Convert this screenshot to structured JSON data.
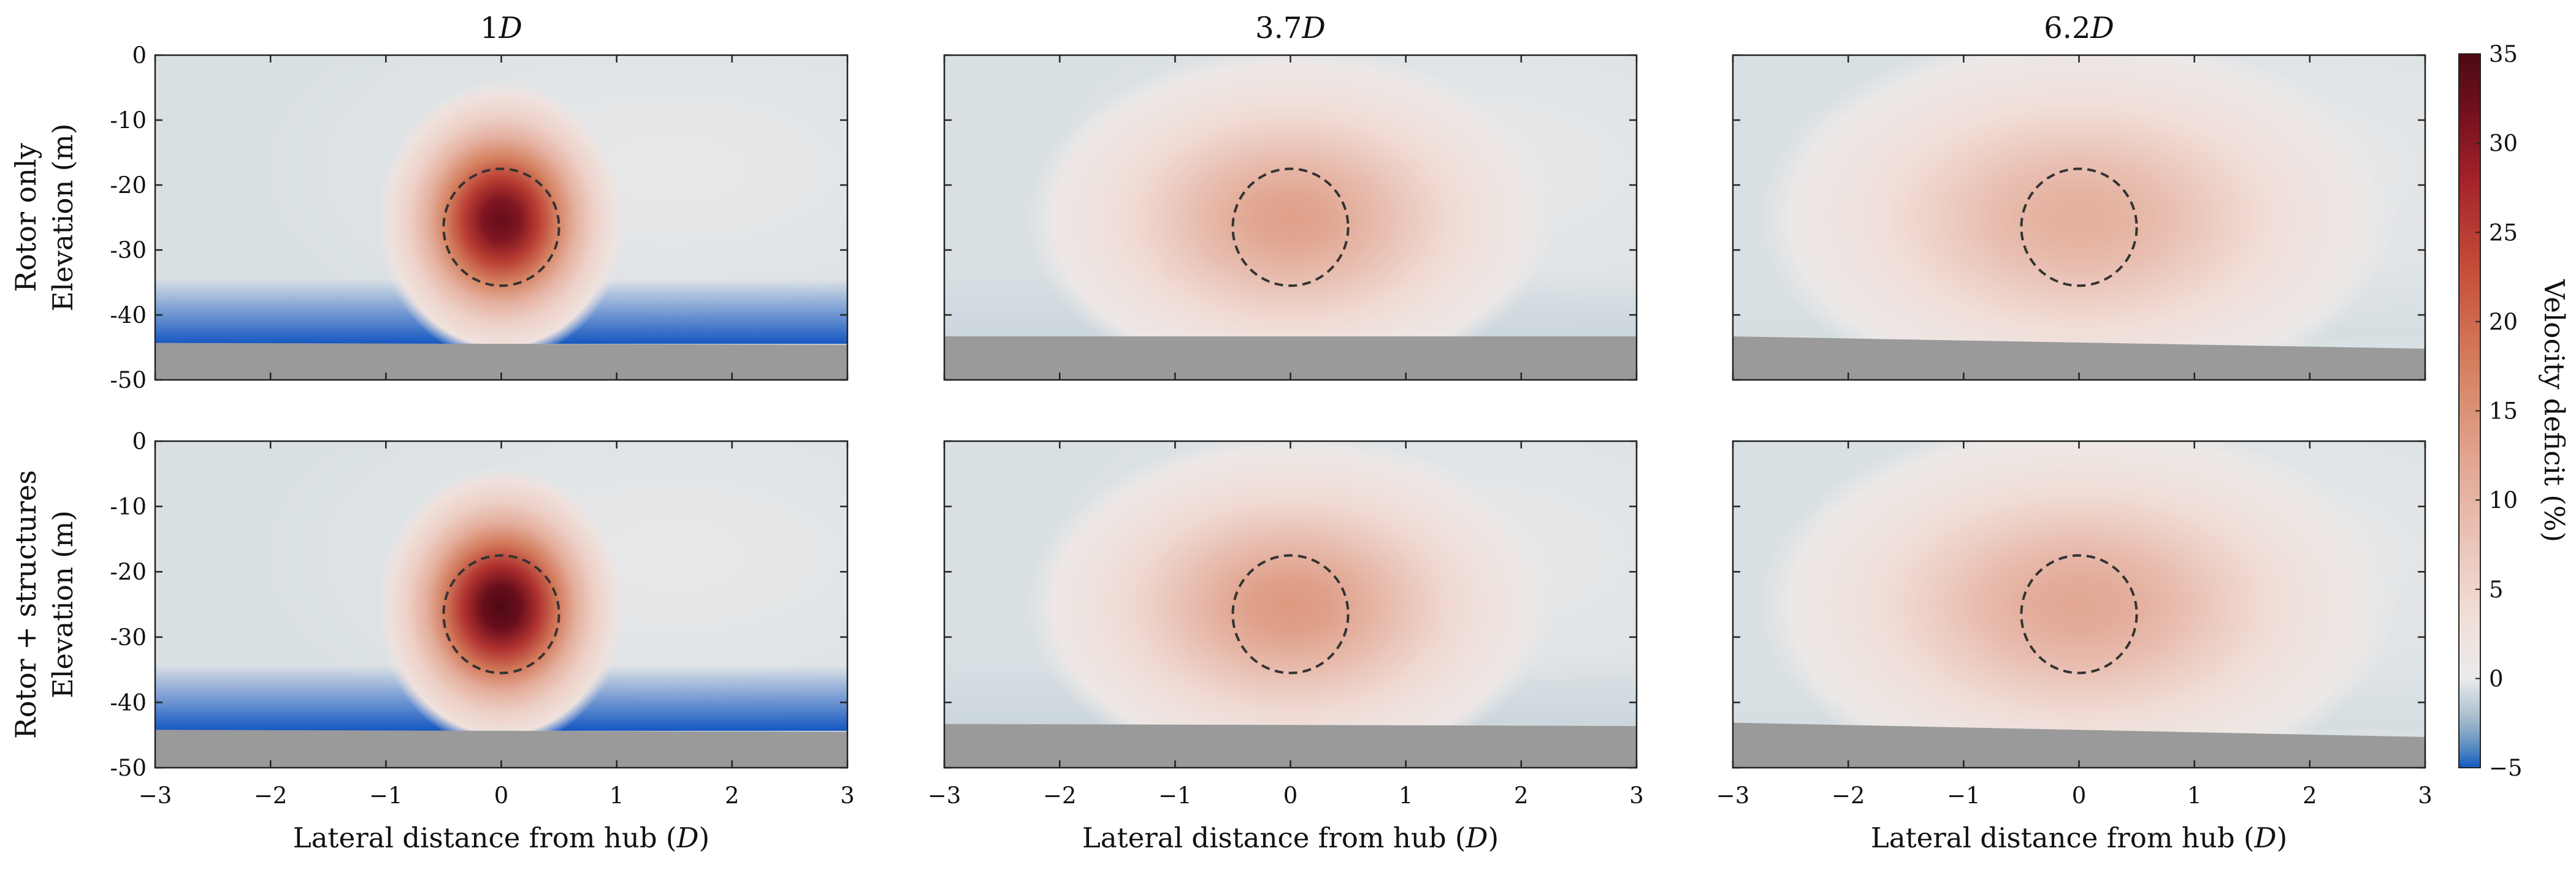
{
  "figure": {
    "row_labels": [
      "Rotor only",
      "Rotor + structures"
    ],
    "column_titles": [
      "1D",
      "3.7D",
      "6.2D"
    ],
    "colorbar": {
      "label": "Velocity deficit (%)",
      "ticks": [
        35,
        30,
        25,
        20,
        15,
        10,
        5,
        0,
        -5
      ]
    }
  },
  "chart_data": {
    "type": "heatmap",
    "title": "",
    "xlabel": "Lateral distance from hub (D)",
    "ylabel": "Elevation (m)",
    "xlim": [
      -3,
      3
    ],
    "ylim": [
      -50,
      0
    ],
    "xticks": [
      -3,
      -2,
      -1,
      0,
      1,
      2,
      3
    ],
    "xtick_labels": [
      "−3",
      "−2",
      "−1",
      "0",
      "1",
      "2",
      "3"
    ],
    "yticks": [
      0,
      -10,
      -20,
      -30,
      -40,
      -50
    ],
    "ytick_labels": [
      "0",
      "-10",
      "-20",
      "-30",
      "-40",
      "-50"
    ],
    "color_range": [
      -5,
      35
    ],
    "colormap": {
      "negative": "#1557c2",
      "zero": "#ebebeb",
      "positive": "#4d0a14",
      "ground": "#9a9a9a"
    },
    "rotor_circle": {
      "center_x": 0,
      "center_y": -26.5,
      "radius_x": 0.5,
      "radius_y": 9
    },
    "panels": [
      {
        "row": "Rotor only",
        "col": "1D",
        "peak": 33,
        "ground_left": -44.3,
        "ground_right": -44.6,
        "surface_speedup": -5,
        "wake_sigma_x": 0.45,
        "wake_sigma_y": 9
      },
      {
        "row": "Rotor only",
        "col": "3.7D",
        "peak": 13,
        "ground_left": -43.3,
        "ground_right": -43.3,
        "surface_speedup": -1,
        "wake_sigma_x": 0.95,
        "wake_sigma_y": 11
      },
      {
        "row": "Rotor only",
        "col": "6.2D",
        "peak": 11,
        "ground_left": -43.3,
        "ground_right": -45.2,
        "surface_speedup": -0.5,
        "wake_sigma_x": 1.15,
        "wake_sigma_y": 12
      },
      {
        "row": "Rotor + structures",
        "col": "1D",
        "peak": 35,
        "ground_left": -44.2,
        "ground_right": -44.5,
        "surface_speedup": -5,
        "wake_sigma_x": 0.45,
        "wake_sigma_y": 9
      },
      {
        "row": "Rotor + structures",
        "col": "3.7D",
        "peak": 14,
        "ground_left": -43.3,
        "ground_right": -43.6,
        "surface_speedup": -1,
        "wake_sigma_x": 0.95,
        "wake_sigma_y": 11
      },
      {
        "row": "Rotor + structures",
        "col": "6.2D",
        "peak": 12,
        "ground_left": -43.1,
        "ground_right": -45.3,
        "surface_speedup": -0.5,
        "wake_sigma_x": 1.15,
        "wake_sigma_y": 12
      }
    ]
  }
}
